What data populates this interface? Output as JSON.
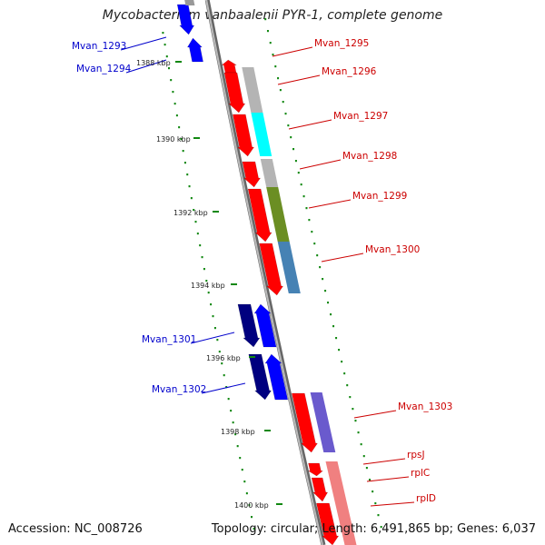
{
  "title": "Mycobacterium vanbaalenii PYR-1, complete genome",
  "accession": "Accession: NC_008726",
  "topology": "Topology: circular; Length: 6,491,865 bp; Genes: 6,037",
  "colors": {
    "backbone": "#888888",
    "forward_gene": "#ff0000",
    "reverse_gene": "#0000ff",
    "reverse_gene_dark": "#00007f",
    "cog_gray": "#b4b4b4",
    "cog_cyan": "#00ffff",
    "cog_olive": "#6b8e23",
    "cog_steelblue": "#4682b4",
    "cog_slateblue": "#6a5acd",
    "cog_pink": "#f08080",
    "tick_green": "#118811",
    "forward_label": "#cc0000",
    "reverse_label": "#0000cc"
  },
  "ticks": [
    {
      "label": "1388 kbp"
    },
    {
      "label": "1390 kbp"
    },
    {
      "label": "1392 kbp"
    },
    {
      "label": "1394 kbp"
    },
    {
      "label": "1396 kbp"
    },
    {
      "label": "1398 kbp"
    },
    {
      "label": "1400 kbp"
    }
  ],
  "genes_forward": [
    {
      "name": "Mvan_1295"
    },
    {
      "name": "Mvan_1296"
    },
    {
      "name": "Mvan_1297"
    },
    {
      "name": "Mvan_1298"
    },
    {
      "name": "Mvan_1299"
    },
    {
      "name": "Mvan_1300"
    },
    {
      "name": "Mvan_1303"
    },
    {
      "name": "rpsJ"
    },
    {
      "name": "rplC"
    },
    {
      "name": "rplD"
    }
  ],
  "genes_reverse": [
    {
      "name": "Mvan_1293"
    },
    {
      "name": "Mvan_1294"
    },
    {
      "name": "Mvan_1301"
    },
    {
      "name": "Mvan_1302"
    }
  ]
}
